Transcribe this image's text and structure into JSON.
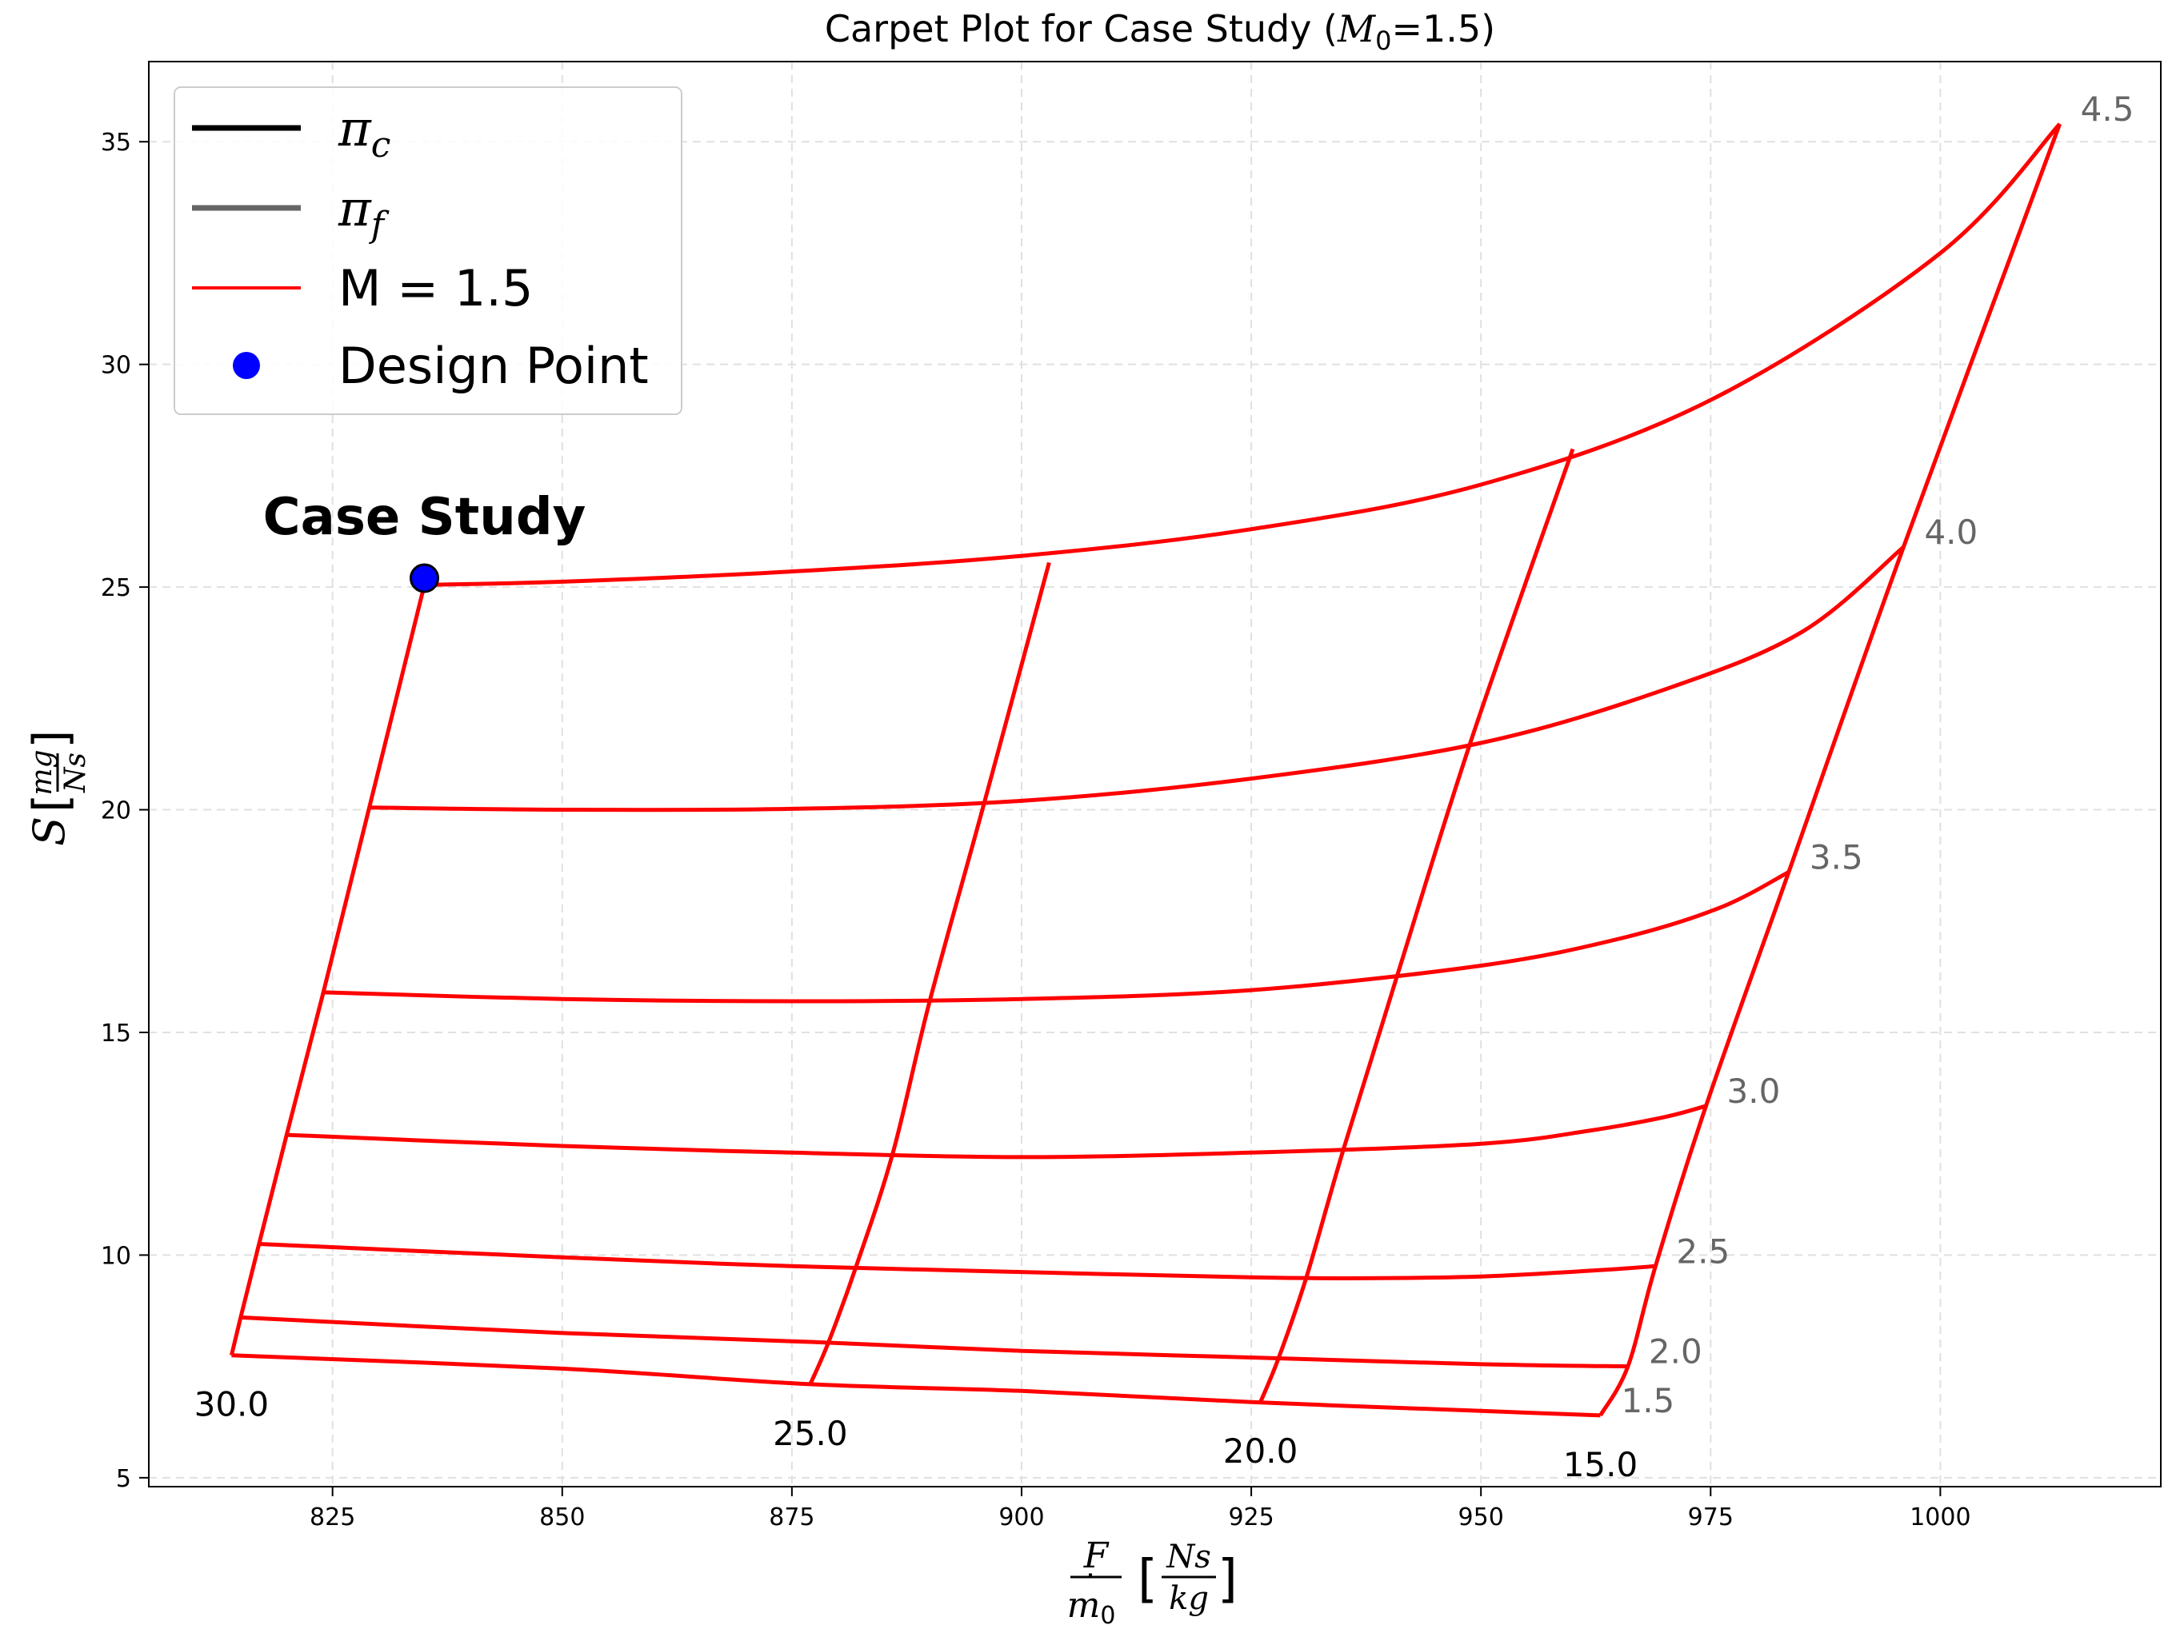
{
  "chart_data": {
    "type": "line",
    "title": {
      "prefix": "Carpet Plot for Case Study (",
      "symbol": "M",
      "subscript": "0",
      "suffix": "=1.5)"
    },
    "xlabel": {
      "numerator": "F",
      "denominator_symbol": "m",
      "denominator_subscript": "0",
      "unit_numerator": "Ns",
      "unit_denominator": "kg"
    },
    "ylabel": {
      "symbol": "S",
      "unit_numerator": "mg",
      "unit_denominator": "Ns"
    },
    "xlim": [
      805,
      1024
    ],
    "ylim": [
      4.8,
      36.8
    ],
    "xticks": [
      825,
      850,
      875,
      900,
      925,
      950,
      975,
      1000
    ],
    "yticks": [
      5,
      10,
      15,
      20,
      25,
      30,
      35
    ],
    "grid": true,
    "legend_position": "top-left",
    "legend": [
      {
        "symbol": "π",
        "subscript": "c",
        "style": "line",
        "color": "#000000"
      },
      {
        "symbol": "π",
        "subscript": "f",
        "style": "line",
        "color": "#666666"
      },
      {
        "label": "M = 1.5",
        "style": "line",
        "color": "#ff0000"
      },
      {
        "label": "Design Point",
        "style": "marker",
        "color": "#0000ff"
      }
    ],
    "series_color": "#ff0000",
    "pi_f_curves": [
      {
        "label": "4.5",
        "points": [
          [
            835,
            25.05
          ],
          [
            850,
            25.12
          ],
          [
            875,
            25.35
          ],
          [
            900,
            25.7
          ],
          [
            925,
            26.3
          ],
          [
            950,
            27.3
          ],
          [
            975,
            29.2
          ],
          [
            1000,
            32.5
          ],
          [
            1013,
            35.4
          ]
        ]
      },
      {
        "label": "4.0",
        "points": [
          [
            829,
            20.05
          ],
          [
            850,
            20.0
          ],
          [
            875,
            20.02
          ],
          [
            900,
            20.2
          ],
          [
            925,
            20.7
          ],
          [
            950,
            21.5
          ],
          [
            970,
            22.7
          ],
          [
            985,
            24.0
          ],
          [
            996,
            25.9
          ]
        ]
      },
      {
        "label": "3.5",
        "points": [
          [
            824,
            15.9
          ],
          [
            850,
            15.75
          ],
          [
            875,
            15.7
          ],
          [
            900,
            15.75
          ],
          [
            925,
            15.95
          ],
          [
            950,
            16.5
          ],
          [
            965,
            17.1
          ],
          [
            976,
            17.8
          ],
          [
            983.5,
            18.6
          ]
        ]
      },
      {
        "label": "3.0",
        "points": [
          [
            820,
            12.7
          ],
          [
            850,
            12.45
          ],
          [
            875,
            12.3
          ],
          [
            900,
            12.2
          ],
          [
            925,
            12.3
          ],
          [
            950,
            12.5
          ],
          [
            962,
            12.8
          ],
          [
            970,
            13.1
          ],
          [
            974.5,
            13.35
          ]
        ]
      },
      {
        "label": "2.5",
        "points": [
          [
            817,
            10.25
          ],
          [
            850,
            9.95
          ],
          [
            875,
            9.75
          ],
          [
            900,
            9.62
          ],
          [
            925,
            9.5
          ],
          [
            937,
            9.48
          ],
          [
            950,
            9.52
          ],
          [
            962,
            9.65
          ],
          [
            969,
            9.75
          ]
        ]
      },
      {
        "label": "2.0",
        "points": [
          [
            815,
            8.6
          ],
          [
            850,
            8.25
          ],
          [
            877,
            8.05
          ],
          [
            900,
            7.85
          ],
          [
            925,
            7.7
          ],
          [
            950,
            7.55
          ],
          [
            966,
            7.5
          ]
        ]
      },
      {
        "label": "1.5",
        "points": [
          [
            814,
            7.75
          ],
          [
            850,
            7.45
          ],
          [
            877,
            7.1
          ],
          [
            900,
            6.95
          ],
          [
            925,
            6.7
          ],
          [
            950,
            6.5
          ],
          [
            963,
            6.4
          ]
        ]
      }
    ],
    "pi_c_curves": [
      {
        "label": "30.0",
        "points": [
          [
            814,
            7.75
          ],
          [
            815,
            8.6
          ],
          [
            817,
            10.25
          ],
          [
            820,
            12.7
          ],
          [
            824,
            15.9
          ],
          [
            829,
            20.05
          ],
          [
            835,
            25.05
          ]
        ]
      },
      {
        "label": "25.0",
        "points": [
          [
            877,
            7.1
          ],
          [
            879,
            8.05
          ],
          [
            882,
            9.75
          ],
          [
            886,
            12.3
          ],
          [
            890,
            15.7
          ],
          [
            896,
            20.2
          ],
          [
            903,
            25.55
          ]
        ]
      },
      {
        "label": "20.0",
        "points": [
          [
            926,
            6.7
          ],
          [
            928,
            7.7
          ],
          [
            931,
            9.5
          ],
          [
            935,
            12.35
          ],
          [
            941,
            16.35
          ],
          [
            949,
            21.6
          ],
          [
            960,
            28.1
          ]
        ]
      },
      {
        "label": "15.0",
        "points": [
          [
            963,
            6.4
          ],
          [
            966,
            7.5
          ],
          [
            969,
            9.75
          ],
          [
            974.5,
            13.35
          ],
          [
            983.5,
            18.6
          ],
          [
            996,
            25.9
          ],
          [
            1013,
            35.4
          ]
        ]
      }
    ],
    "pi_f_label_color": "#666666",
    "pi_c_label_color": "#000000",
    "design_point": {
      "x": 835,
      "y": 25.2,
      "annotation": "Case Study"
    }
  }
}
